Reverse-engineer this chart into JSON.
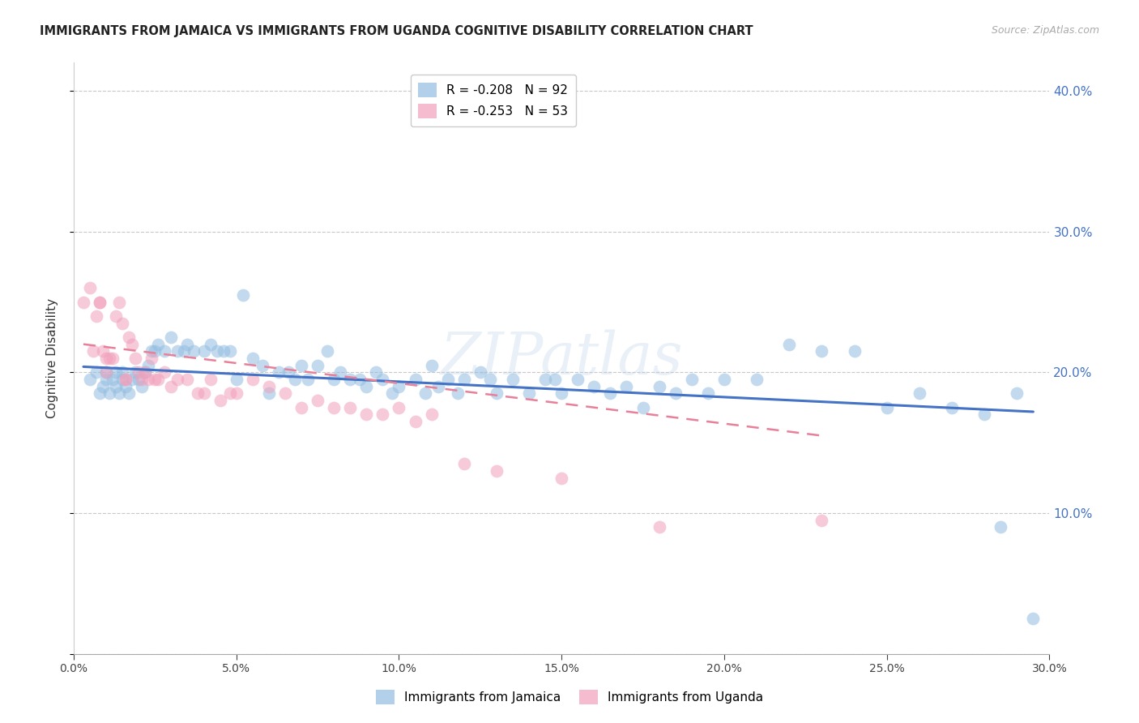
{
  "title": "IMMIGRANTS FROM JAMAICA VS IMMIGRANTS FROM UGANDA COGNITIVE DISABILITY CORRELATION CHART",
  "source": "Source: ZipAtlas.com",
  "ylabel": "Cognitive Disability",
  "xlim": [
    0.0,
    0.3
  ],
  "ylim": [
    0.0,
    0.42
  ],
  "x_ticks": [
    0.0,
    0.05,
    0.1,
    0.15,
    0.2,
    0.25,
    0.3
  ],
  "y_ticks_right": [
    0.1,
    0.2,
    0.3,
    0.4
  ],
  "grid_color": "#c8c8c8",
  "background_color": "#ffffff",
  "jamaica_color": "#92bde0",
  "uganda_color": "#f2a0bb",
  "jamaica_line_color": "#4472c4",
  "uganda_line_color": "#e8809a",
  "R_jamaica": -0.208,
  "N_jamaica": 92,
  "R_uganda": -0.253,
  "N_uganda": 53,
  "legend_label_jamaica": "Immigrants from Jamaica",
  "legend_label_uganda": "Immigrants from Uganda",
  "watermark": "ZIPatlas",
  "jamaica_scatter_x": [
    0.005,
    0.007,
    0.008,
    0.009,
    0.01,
    0.01,
    0.011,
    0.012,
    0.013,
    0.013,
    0.014,
    0.015,
    0.015,
    0.016,
    0.017,
    0.018,
    0.019,
    0.02,
    0.021,
    0.022,
    0.023,
    0.024,
    0.025,
    0.026,
    0.028,
    0.03,
    0.032,
    0.034,
    0.035,
    0.037,
    0.04,
    0.042,
    0.044,
    0.046,
    0.048,
    0.05,
    0.052,
    0.055,
    0.058,
    0.06,
    0.063,
    0.066,
    0.068,
    0.07,
    0.072,
    0.075,
    0.078,
    0.08,
    0.082,
    0.085,
    0.088,
    0.09,
    0.093,
    0.095,
    0.098,
    0.1,
    0.105,
    0.108,
    0.11,
    0.112,
    0.115,
    0.118,
    0.12,
    0.125,
    0.128,
    0.13,
    0.135,
    0.14,
    0.145,
    0.148,
    0.15,
    0.155,
    0.16,
    0.165,
    0.17,
    0.175,
    0.18,
    0.185,
    0.19,
    0.195,
    0.2,
    0.21,
    0.22,
    0.23,
    0.24,
    0.25,
    0.26,
    0.27,
    0.28,
    0.285,
    0.29,
    0.295
  ],
  "jamaica_scatter_y": [
    0.195,
    0.2,
    0.185,
    0.19,
    0.195,
    0.2,
    0.185,
    0.195,
    0.2,
    0.19,
    0.185,
    0.195,
    0.2,
    0.19,
    0.185,
    0.195,
    0.2,
    0.195,
    0.19,
    0.2,
    0.205,
    0.215,
    0.215,
    0.22,
    0.215,
    0.225,
    0.215,
    0.215,
    0.22,
    0.215,
    0.215,
    0.22,
    0.215,
    0.215,
    0.215,
    0.195,
    0.255,
    0.21,
    0.205,
    0.185,
    0.2,
    0.2,
    0.195,
    0.205,
    0.195,
    0.205,
    0.215,
    0.195,
    0.2,
    0.195,
    0.195,
    0.19,
    0.2,
    0.195,
    0.185,
    0.19,
    0.195,
    0.185,
    0.205,
    0.19,
    0.195,
    0.185,
    0.195,
    0.2,
    0.195,
    0.185,
    0.195,
    0.185,
    0.195,
    0.195,
    0.185,
    0.195,
    0.19,
    0.185,
    0.19,
    0.175,
    0.19,
    0.185,
    0.195,
    0.185,
    0.195,
    0.195,
    0.22,
    0.215,
    0.215,
    0.175,
    0.185,
    0.175,
    0.17,
    0.09,
    0.185,
    0.025
  ],
  "uganda_scatter_x": [
    0.003,
    0.005,
    0.006,
    0.007,
    0.008,
    0.008,
    0.009,
    0.01,
    0.01,
    0.011,
    0.012,
    0.013,
    0.014,
    0.015,
    0.016,
    0.016,
    0.017,
    0.018,
    0.019,
    0.02,
    0.021,
    0.022,
    0.023,
    0.024,
    0.025,
    0.026,
    0.028,
    0.03,
    0.032,
    0.035,
    0.038,
    0.04,
    0.042,
    0.045,
    0.048,
    0.05,
    0.055,
    0.06,
    0.065,
    0.07,
    0.075,
    0.08,
    0.085,
    0.09,
    0.095,
    0.1,
    0.105,
    0.11,
    0.12,
    0.13,
    0.15,
    0.18,
    0.23
  ],
  "uganda_scatter_y": [
    0.25,
    0.26,
    0.215,
    0.24,
    0.25,
    0.25,
    0.215,
    0.21,
    0.2,
    0.21,
    0.21,
    0.24,
    0.25,
    0.235,
    0.195,
    0.195,
    0.225,
    0.22,
    0.21,
    0.2,
    0.195,
    0.2,
    0.195,
    0.21,
    0.195,
    0.195,
    0.2,
    0.19,
    0.195,
    0.195,
    0.185,
    0.185,
    0.195,
    0.18,
    0.185,
    0.185,
    0.195,
    0.19,
    0.185,
    0.175,
    0.18,
    0.175,
    0.175,
    0.17,
    0.17,
    0.175,
    0.165,
    0.17,
    0.135,
    0.13,
    0.125,
    0.09,
    0.095
  ],
  "jamaica_line_x": [
    0.003,
    0.295
  ],
  "jamaica_line_y": [
    0.204,
    0.172
  ],
  "uganda_line_x": [
    0.003,
    0.23
  ],
  "uganda_line_y": [
    0.22,
    0.155
  ]
}
